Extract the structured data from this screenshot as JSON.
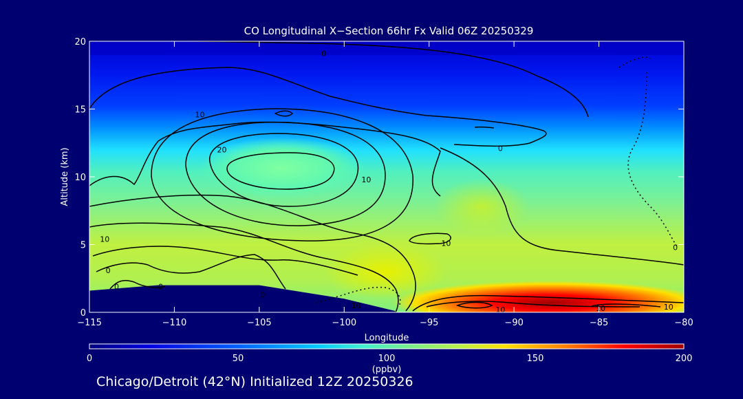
{
  "chart_data": {
    "type": "heatmap",
    "title": "CO Longitudinal X−Section 66hr  Fx Valid 06Z 20250329",
    "xlabel": "Longitude",
    "ylabel": "Altitude (km)",
    "xlim": [
      -115,
      -80
    ],
    "ylim": [
      0,
      20
    ],
    "x_ticks": [
      -115,
      -110,
      -105,
      -100,
      -95,
      -90,
      -85,
      -80
    ],
    "x_tick_labels": [
      "−115",
      "−110",
      "−105",
      "−100",
      "−95",
      "−90",
      "−85",
      "−80"
    ],
    "y_ticks": [
      0,
      5,
      10,
      15,
      20
    ],
    "y_tick_labels": [
      "0",
      "5",
      "10",
      "15",
      "20"
    ],
    "colorbar": {
      "min": 0,
      "max": 200,
      "ticks": [
        0,
        50,
        100,
        150,
        200
      ],
      "tick_labels": [
        "0",
        "50",
        "100",
        "150",
        "200"
      ],
      "unit_label": "(ppbv)",
      "colors": [
        "#000080",
        "#0000e0",
        "#0060ff",
        "#00c8ff",
        "#40f0d0",
        "#80f080",
        "#c0f040",
        "#ffe000",
        "#ff8000",
        "#ff0000",
        "#a00000"
      ]
    },
    "terrain_km": [
      [
        -115,
        1.6
      ],
      [
        -111,
        2.0
      ],
      [
        -105,
        2.0
      ],
      [
        -100,
        1.0
      ],
      [
        -97,
        0.1
      ]
    ],
    "contour_labels": [
      {
        "lon": -108.5,
        "alt": 14.6,
        "text": "10"
      },
      {
        "lon": -107.2,
        "alt": 12.0,
        "text": "20"
      },
      {
        "lon": -98.7,
        "alt": 9.8,
        "text": "10"
      },
      {
        "lon": -94.0,
        "alt": 5.1,
        "text": "10"
      },
      {
        "lon": -90.8,
        "alt": 12.1,
        "text": "0"
      },
      {
        "lon": -101.2,
        "alt": 19.1,
        "text": "0"
      },
      {
        "lon": -114.1,
        "alt": 5.4,
        "text": "10"
      },
      {
        "lon": -113.9,
        "alt": 3.1,
        "text": "0"
      },
      {
        "lon": -113.4,
        "alt": 1.9,
        "text": "0"
      },
      {
        "lon": -110.8,
        "alt": 1.9,
        "text": "0"
      },
      {
        "lon": -104.8,
        "alt": 1.3,
        "text": "0"
      },
      {
        "lon": -99.3,
        "alt": 0.5,
        "text": "10"
      },
      {
        "lon": -90.8,
        "alt": 0.2,
        "text": "10"
      },
      {
        "lon": -84.9,
        "alt": 0.3,
        "text": "10"
      },
      {
        "lon": -80.9,
        "alt": 0.4,
        "text": "10"
      },
      {
        "lon": -80.5,
        "alt": 4.8,
        "text": "0"
      }
    ],
    "grid": false
  },
  "footer": {
    "caption": "Chicago/Detroit (42°N) Initialized 12Z 20250326"
  }
}
